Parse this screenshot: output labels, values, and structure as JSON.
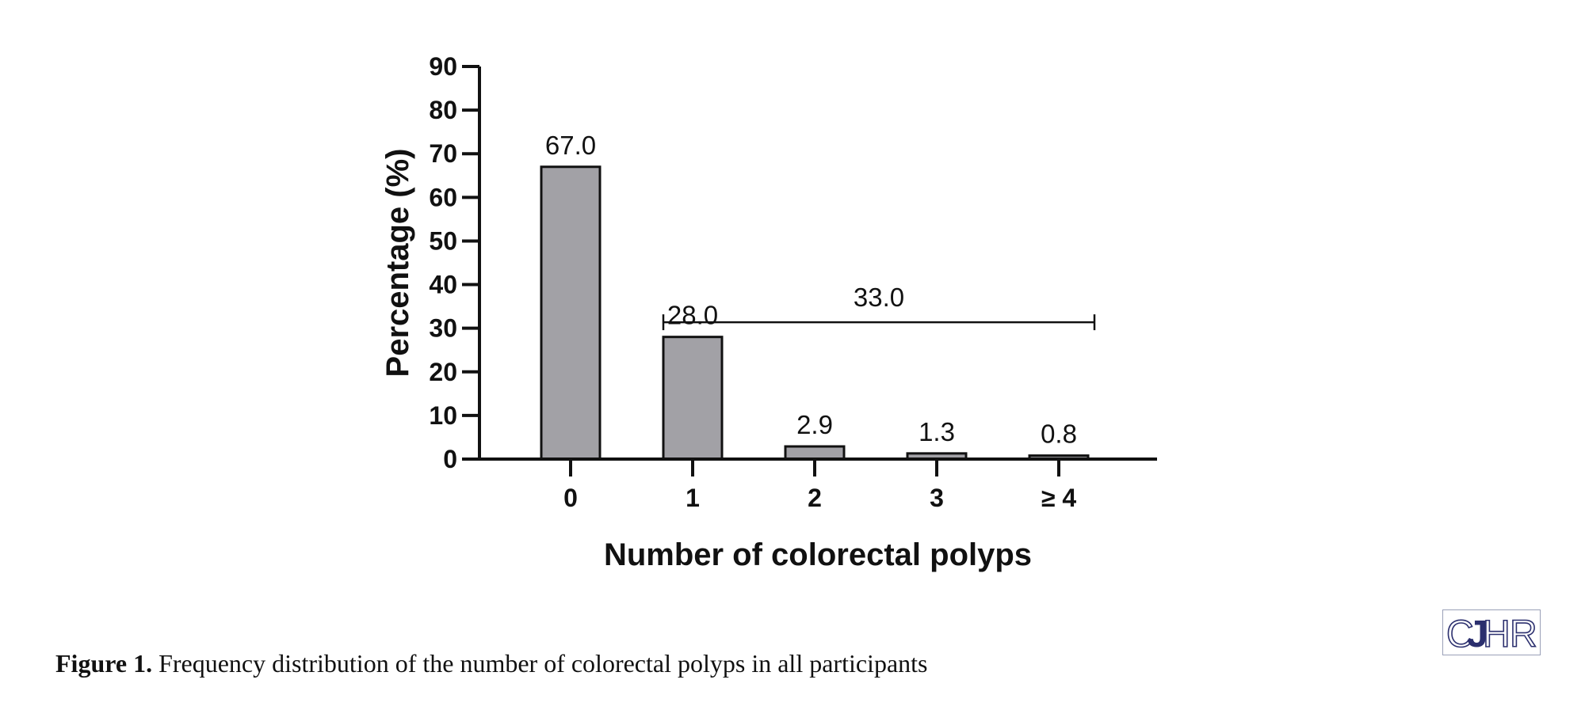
{
  "chart_data": {
    "type": "bar",
    "categories": [
      "0",
      "1",
      "2",
      "3",
      "≥ 4"
    ],
    "values": [
      67.0,
      28.0,
      2.9,
      1.3,
      0.8
    ],
    "value_labels": [
      "67.0",
      "28.0",
      "2.9",
      "1.3",
      "0.8"
    ],
    "xlabel": "Number of colorectal polyps",
    "ylabel": "Percentage (%)",
    "ylim": [
      0,
      90
    ],
    "yticks": [
      0,
      10,
      20,
      30,
      40,
      50,
      60,
      70,
      80,
      90
    ],
    "bracket": {
      "from_category": "1",
      "to_category": "≥ 4",
      "label": "33.0",
      "value": 33.0
    },
    "bar_color": "#a2a1a6",
    "grid": false,
    "legend": false
  },
  "caption": {
    "label": "Figure 1.",
    "text": "Frequency distribution of the number of colorectal polyps in all participants"
  },
  "logo": {
    "text": "CJHR"
  }
}
